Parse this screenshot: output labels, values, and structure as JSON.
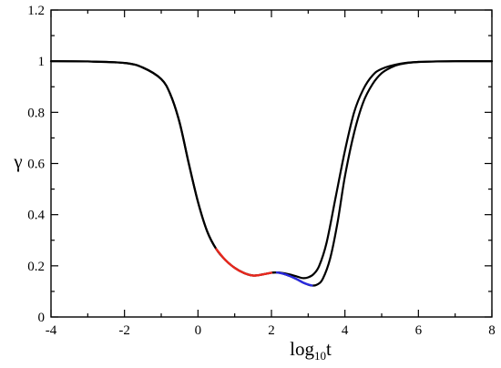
{
  "chart_data": {
    "type": "line",
    "title": "",
    "xlabel": "log₁₀t",
    "xlabel_parts": {
      "base": "log",
      "sub": "10",
      "var": "t"
    },
    "ylabel": "γ",
    "xlim": [
      -4,
      8
    ],
    "ylim": [
      0,
      1.2
    ],
    "xticks": [
      -4,
      -2,
      0,
      2,
      4,
      6,
      8
    ],
    "yticks": [
      0,
      0.2,
      0.4,
      0.6,
      0.8,
      1,
      1.2
    ],
    "xtick_labels": [
      "-4",
      "-2",
      "0",
      "2",
      "4",
      "6",
      "8"
    ],
    "ytick_labels": [
      "0",
      "0.2",
      "0.4",
      "0.6",
      "0.8",
      "1",
      "1.2"
    ],
    "grid": false,
    "legend": "none",
    "colors": {
      "curve": "#000000",
      "highlight_red": "#e8281e",
      "highlight_blue": "#2a2adf"
    },
    "series": [
      {
        "x": [
          -4,
          -3,
          -2,
          -1.5,
          -1,
          -0.75,
          -0.5,
          -0.25,
          0,
          0.25,
          0.5,
          0.75,
          1,
          1.25,
          1.5,
          1.75,
          2,
          2.15,
          2.3,
          2.5,
          2.7,
          2.85,
          3,
          3.15,
          3.3,
          3.5,
          3.75,
          4,
          4.25,
          4.5,
          4.75,
          5,
          5.5,
          6,
          7,
          8
        ],
        "y": [
          1.0,
          0.999,
          0.993,
          0.975,
          0.93,
          0.87,
          0.76,
          0.6,
          0.45,
          0.335,
          0.265,
          0.222,
          0.192,
          0.172,
          0.162,
          0.166,
          0.173,
          0.174,
          0.172,
          0.166,
          0.158,
          0.152,
          0.155,
          0.168,
          0.2,
          0.29,
          0.47,
          0.65,
          0.8,
          0.89,
          0.944,
          0.97,
          0.99,
          0.997,
          1.0,
          1.0
        ]
      },
      {
        "x": [
          -4,
          -3,
          -2,
          -1.5,
          -1,
          -0.75,
          -0.5,
          -0.25,
          0,
          0.25,
          0.5,
          0.75,
          1,
          1.25,
          1.5,
          1.75,
          2,
          2.15,
          2.3,
          2.5,
          2.7,
          2.9,
          3.1,
          3.25,
          3.4,
          3.6,
          3.8,
          4,
          4.25,
          4.5,
          4.75,
          5,
          5.25,
          5.5,
          6,
          7,
          8
        ],
        "y": [
          1.0,
          0.999,
          0.993,
          0.975,
          0.93,
          0.87,
          0.76,
          0.6,
          0.45,
          0.335,
          0.265,
          0.222,
          0.192,
          0.172,
          0.162,
          0.166,
          0.173,
          0.174,
          0.17,
          0.16,
          0.147,
          0.132,
          0.123,
          0.127,
          0.15,
          0.23,
          0.37,
          0.55,
          0.72,
          0.84,
          0.91,
          0.953,
          0.975,
          0.988,
          0.997,
          1.0,
          1.0
        ]
      }
    ],
    "highlights": [
      {
        "color": "red",
        "x_range": [
          0.5,
          2.1
        ]
      },
      {
        "color": "blue",
        "x_range": [
          2.1,
          3.1
        ]
      }
    ]
  }
}
